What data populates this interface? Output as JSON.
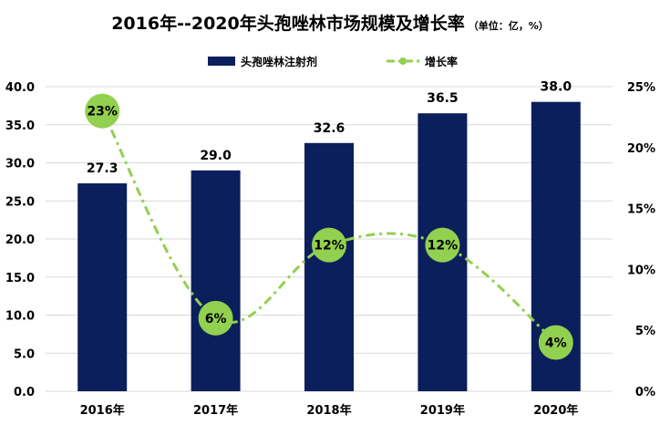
{
  "colors": {
    "bar": "#0a1f5c",
    "line": "#92d050",
    "grid": "#d9d9d9"
  },
  "chart_data": {
    "type": "bar",
    "title": "2016年--2020年头孢唑林市场规模及增长率",
    "unit_note": "（单位：亿，%）",
    "categories": [
      "2016年",
      "2017年",
      "2018年",
      "2019年",
      "2020年"
    ],
    "series": [
      {
        "name": "头孢唑林注射剂",
        "type": "bar",
        "axis": "left",
        "values": [
          27.3,
          29.0,
          32.6,
          36.5,
          38.0
        ],
        "labels": [
          "27.3",
          "29.0",
          "32.6",
          "36.5",
          "38.0"
        ]
      },
      {
        "name": "增长率",
        "type": "line",
        "axis": "right",
        "values": [
          23,
          6,
          12,
          12,
          4
        ],
        "labels": [
          "23%",
          "6%",
          "12%",
          "12%",
          "4%"
        ]
      }
    ],
    "y_left": {
      "min": 0,
      "max": 40,
      "ticks": [
        "0.0",
        "5.0",
        "10.0",
        "15.0",
        "20.0",
        "25.0",
        "30.0",
        "35.0",
        "40.0"
      ]
    },
    "y_right": {
      "min": 0,
      "max": 25,
      "ticks": [
        "0%",
        "5%",
        "10%",
        "15%",
        "20%",
        "25%"
      ]
    },
    "legend_position": "top-center",
    "grid": true
  }
}
